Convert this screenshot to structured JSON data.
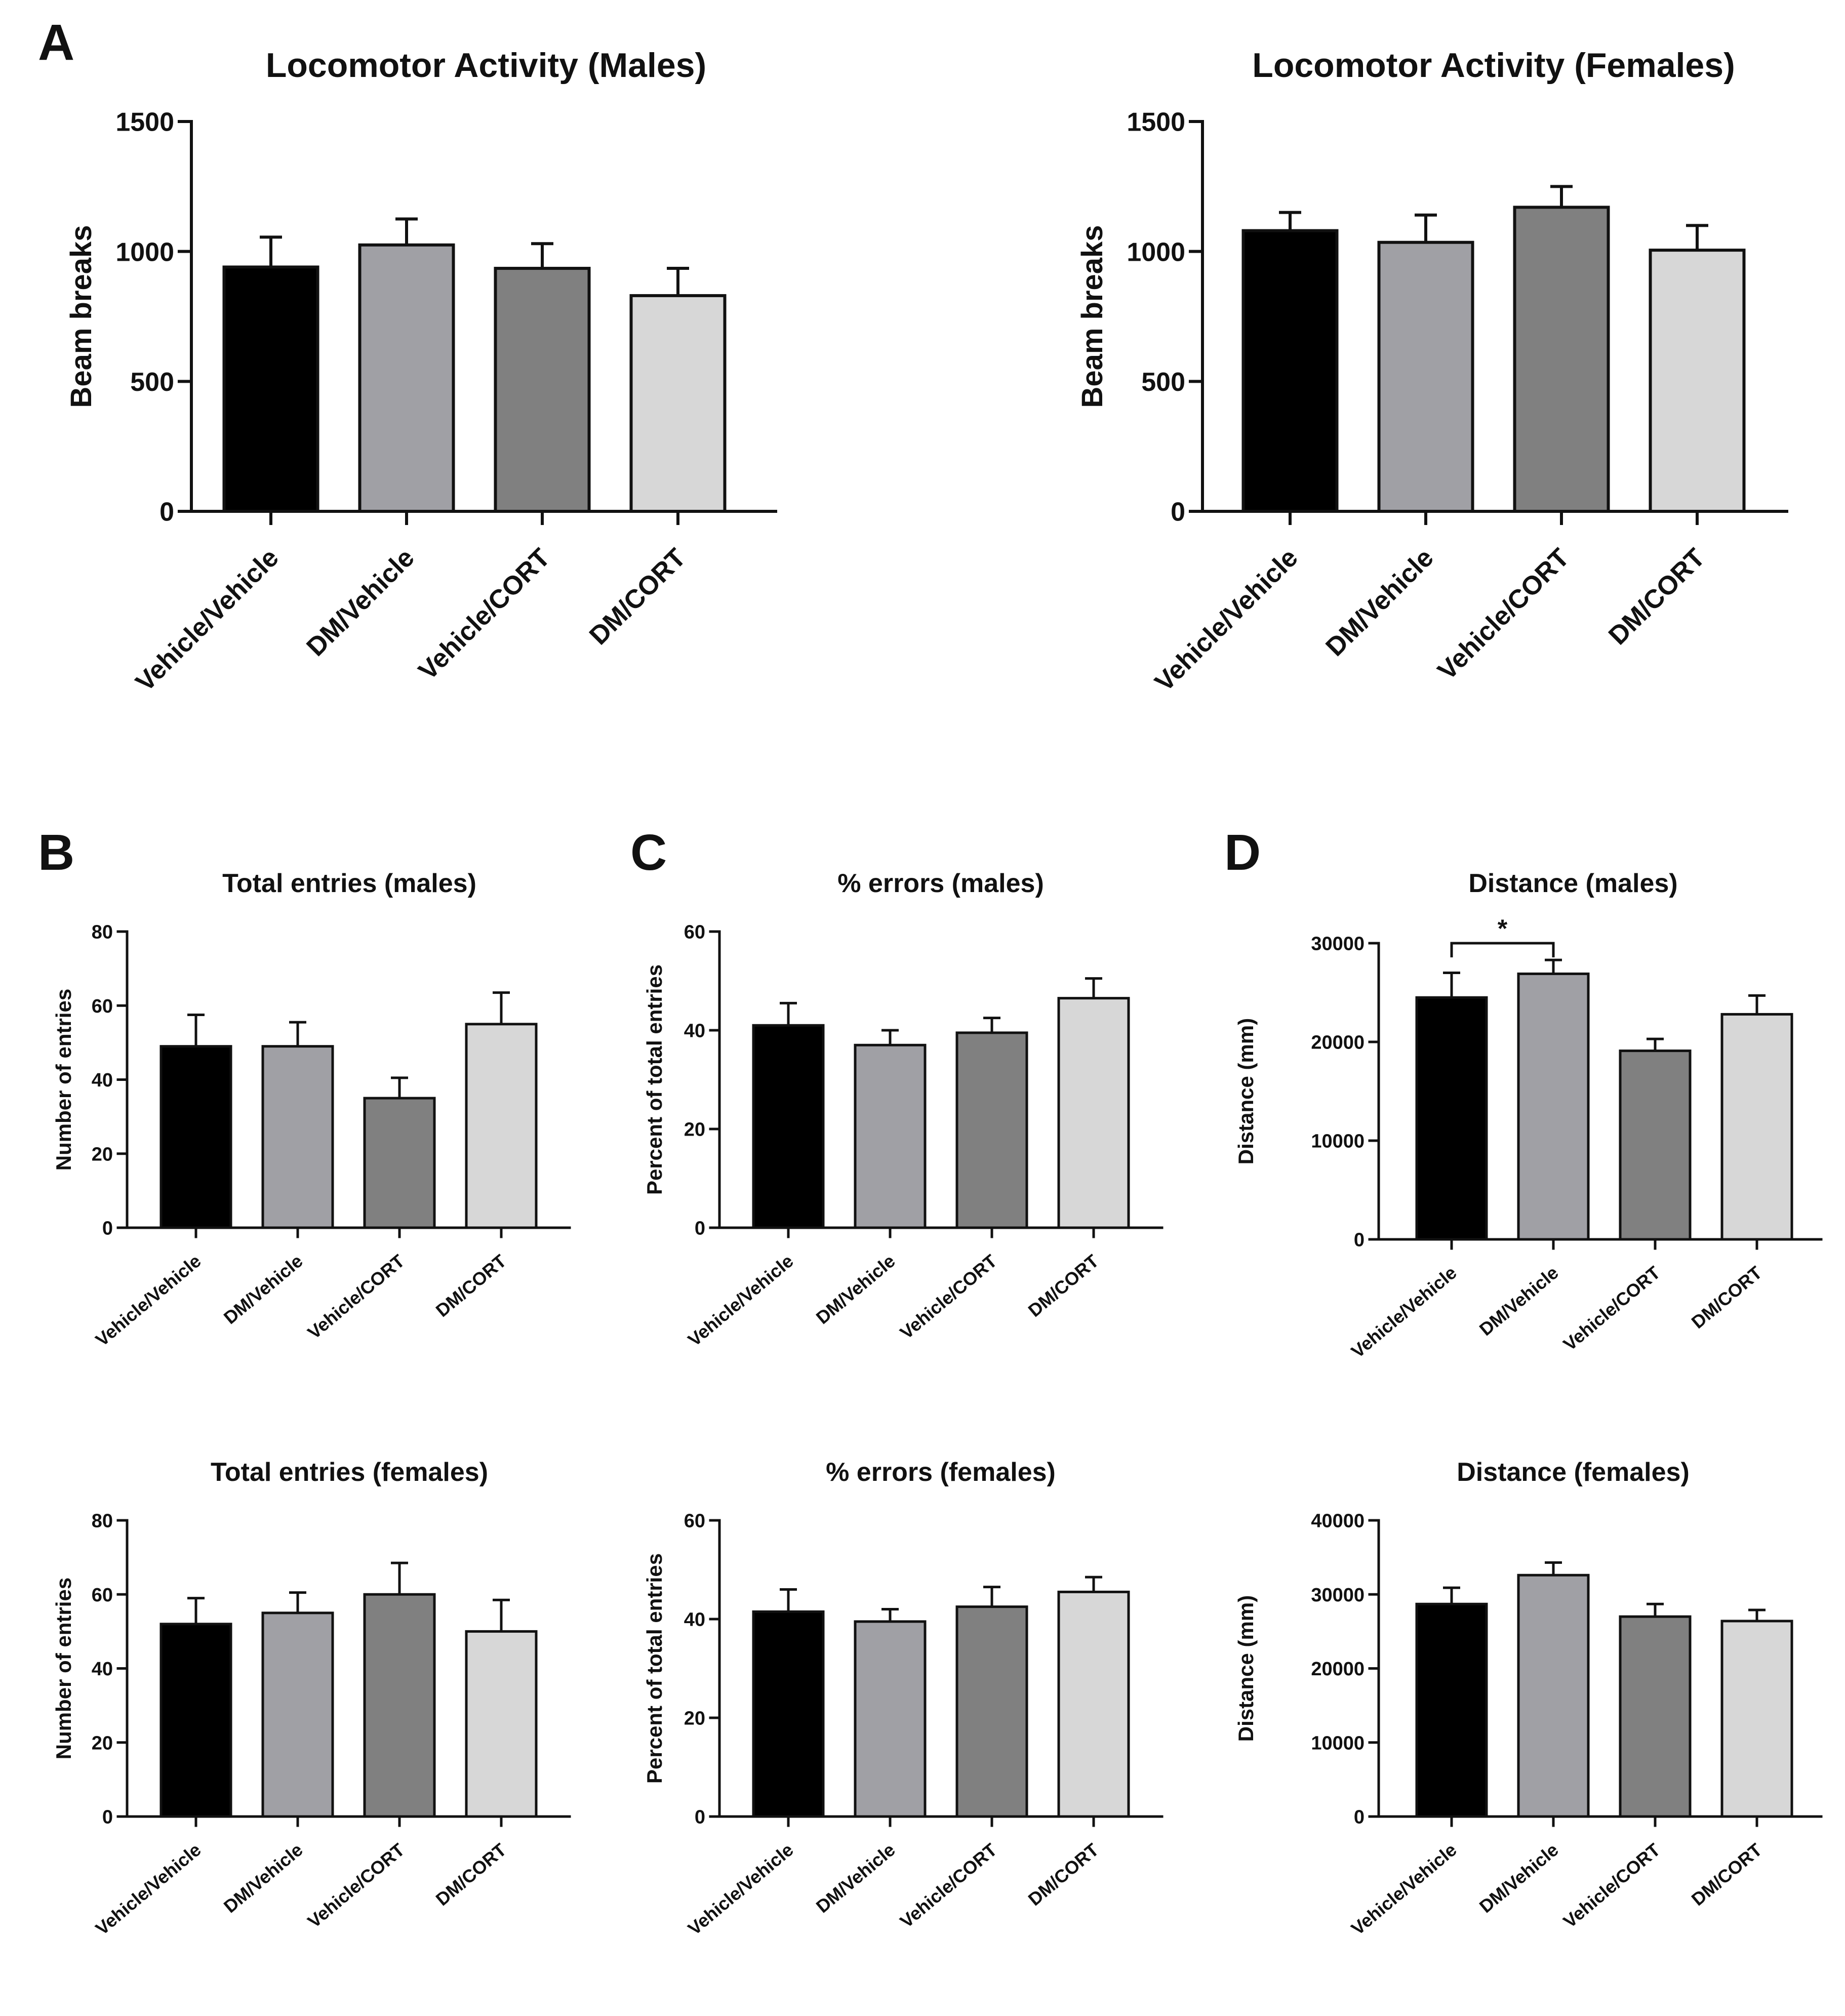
{
  "panel_letters": {
    "A": "A",
    "B": "B",
    "C": "C",
    "D": "D"
  },
  "chart_data": [
    {
      "id": "A_males",
      "type": "bar",
      "title": "Locomotor Activity (Males)",
      "ylabel": "Beam breaks",
      "categories": [
        "Vehicle/Vehicle",
        "DM/Vehicle",
        "Vehicle/CORT",
        "DM/CORT"
      ],
      "values": [
        940,
        1025,
        935,
        830
      ],
      "errors": [
        115,
        100,
        95,
        105
      ],
      "ylim": [
        0,
        1500
      ],
      "yticks": [
        0,
        500,
        1000,
        1500
      ],
      "ytick_labels": [
        "0",
        "500",
        "1000",
        "1500"
      ]
    },
    {
      "id": "A_females",
      "type": "bar",
      "title": "Locomotor Activity (Females)",
      "ylabel": "Beam breaks",
      "categories": [
        "Vehicle/Vehicle",
        "DM/Vehicle",
        "Vehicle/CORT",
        "DM/CORT"
      ],
      "values": [
        1080,
        1035,
        1170,
        1005
      ],
      "errors": [
        70,
        105,
        80,
        95
      ],
      "ylim": [
        0,
        1500
      ],
      "yticks": [
        0,
        500,
        1000,
        1500
      ],
      "ytick_labels": [
        "0",
        "500",
        "1000",
        "1500"
      ]
    },
    {
      "id": "B_males",
      "type": "bar",
      "title": "Total entries (males)",
      "ylabel": "Number of entries",
      "categories": [
        "Vehicle/Vehicle",
        "DM/Vehicle",
        "Vehicle/CORT",
        "DM/CORT"
      ],
      "values": [
        49,
        49,
        35,
        55
      ],
      "errors": [
        8.5,
        6.5,
        5.5,
        8.5
      ],
      "ylim": [
        0,
        80
      ],
      "yticks": [
        0,
        20,
        40,
        60,
        80
      ],
      "ytick_labels": [
        "0",
        "20",
        "40",
        "60",
        "80"
      ]
    },
    {
      "id": "C_males",
      "type": "bar",
      "title": "% errors (males)",
      "ylabel": "Percent of total entries",
      "categories": [
        "Vehicle/Vehicle",
        "DM/Vehicle",
        "Vehicle/CORT",
        "DM/CORT"
      ],
      "values": [
        41,
        37,
        39.5,
        46.5
      ],
      "errors": [
        4.5,
        3,
        3,
        4
      ],
      "ylim": [
        0,
        60
      ],
      "yticks": [
        0,
        20,
        40,
        60
      ],
      "ytick_labels": [
        "0",
        "20",
        "40",
        "60"
      ]
    },
    {
      "id": "D_males",
      "type": "bar",
      "title": "Distance (males)",
      "ylabel": "Distance (mm)",
      "categories": [
        "Vehicle/Vehicle",
        "DM/Vehicle",
        "Vehicle/CORT",
        "DM/CORT"
      ],
      "values": [
        24500,
        26900,
        19100,
        22800
      ],
      "errors": [
        2500,
        1400,
        1200,
        1900
      ],
      "ylim": [
        0,
        30000
      ],
      "yticks": [
        0,
        10000,
        20000,
        30000
      ],
      "ytick_labels": [
        "0",
        "10000",
        "20000",
        "30000"
      ],
      "significance": {
        "from": 0,
        "to": 1,
        "label": "*"
      }
    },
    {
      "id": "B_females",
      "type": "bar",
      "title": "Total entries (females)",
      "ylabel": "Number of entries",
      "categories": [
        "Vehicle/Vehicle",
        "DM/Vehicle",
        "Vehicle/CORT",
        "DM/CORT"
      ],
      "values": [
        52,
        55,
        60,
        50
      ],
      "errors": [
        7,
        5.5,
        8.5,
        8.5
      ],
      "ylim": [
        0,
        80
      ],
      "yticks": [
        0,
        20,
        40,
        60,
        80
      ],
      "ytick_labels": [
        "0",
        "20",
        "40",
        "60",
        "80"
      ]
    },
    {
      "id": "C_females",
      "type": "bar",
      "title": "% errors (females)",
      "ylabel": "Percent of total entries",
      "categories": [
        "Vehicle/Vehicle",
        "DM/Vehicle",
        "Vehicle/CORT",
        "DM/CORT"
      ],
      "values": [
        41.5,
        39.5,
        42.5,
        45.5
      ],
      "errors": [
        4.5,
        2.5,
        4,
        3
      ],
      "ylim": [
        0,
        60
      ],
      "yticks": [
        0,
        20,
        40,
        60
      ],
      "ytick_labels": [
        "0",
        "20",
        "40",
        "60"
      ]
    },
    {
      "id": "D_females",
      "type": "bar",
      "title": "Distance (females)",
      "ylabel": "Distance (mm)",
      "categories": [
        "Vehicle/Vehicle",
        "DM/Vehicle",
        "Vehicle/CORT",
        "DM/CORT"
      ],
      "values": [
        28700,
        32600,
        27000,
        26400
      ],
      "errors": [
        2200,
        1700,
        1700,
        1500
      ],
      "ylim": [
        0,
        40000
      ],
      "yticks": [
        0,
        10000,
        20000,
        30000,
        40000
      ],
      "ytick_labels": [
        "0",
        "10000",
        "20000",
        "30000",
        "40000"
      ]
    }
  ],
  "colors": {
    "bars": [
      "#000000",
      "#a0a0a5",
      "#808080",
      "#d7d7d7"
    ],
    "outline": "#111111"
  }
}
